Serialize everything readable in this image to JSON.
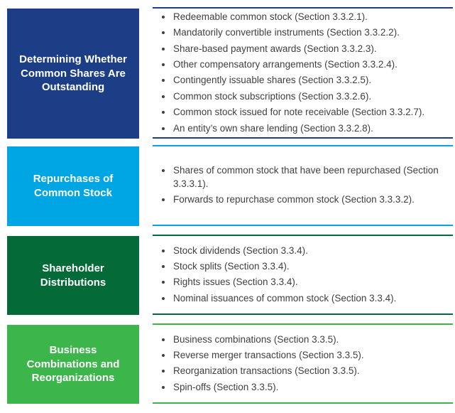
{
  "figure": {
    "text_color": "#404040",
    "bullet_color": "#404040",
    "background": "#ffffff"
  },
  "sections": [
    {
      "label": "Determining Whether Common Shares Are Outstanding",
      "color": "#1B3E87",
      "items": [
        "Redeemable common stock (Section 3.3.2.1).",
        "Mandatorily convertible instruments (Section 3.3.2.2).",
        "Share-based payment awards (Section 3.3.2.3).",
        "Other compensatory arrangements (Section 3.3.2.4).",
        "Contingently issuable shares (Section 3.3.2.5).",
        "Common stock subscriptions (Section 3.3.2.6).",
        "Common stock issued for note receivable (Section 3.3.2.7).",
        "An entity’s own share lending (Section 3.3.2.8)."
      ]
    },
    {
      "label": "Repurchases of Common Stock",
      "color": "#00A6E3",
      "items": [
        "Shares of common stock that have been repurchased (Section 3.3.3.1).",
        "Forwards to repurchase common stock (Section 3.3.3.2)."
      ]
    },
    {
      "label": "Shareholder Distributions",
      "color": "#046A38",
      "items": [
        "Stock dividends (Section 3.3.4).",
        "Stock splits (Section 3.3.4).",
        "Rights issues (Section 3.3.4).",
        "Nominal issuances of common stock (Section 3.3.4)."
      ]
    },
    {
      "label": "Business Combinations and Reorganizations",
      "color": "#3CB54A",
      "items": [
        "Business combinations (Section 3.3.5).",
        "Reverse merger transactions (Section 3.3.5).",
        "Reorganization transactions (Section 3.3.5).",
        "Spin-offs (Section 3.3.5)."
      ]
    }
  ]
}
